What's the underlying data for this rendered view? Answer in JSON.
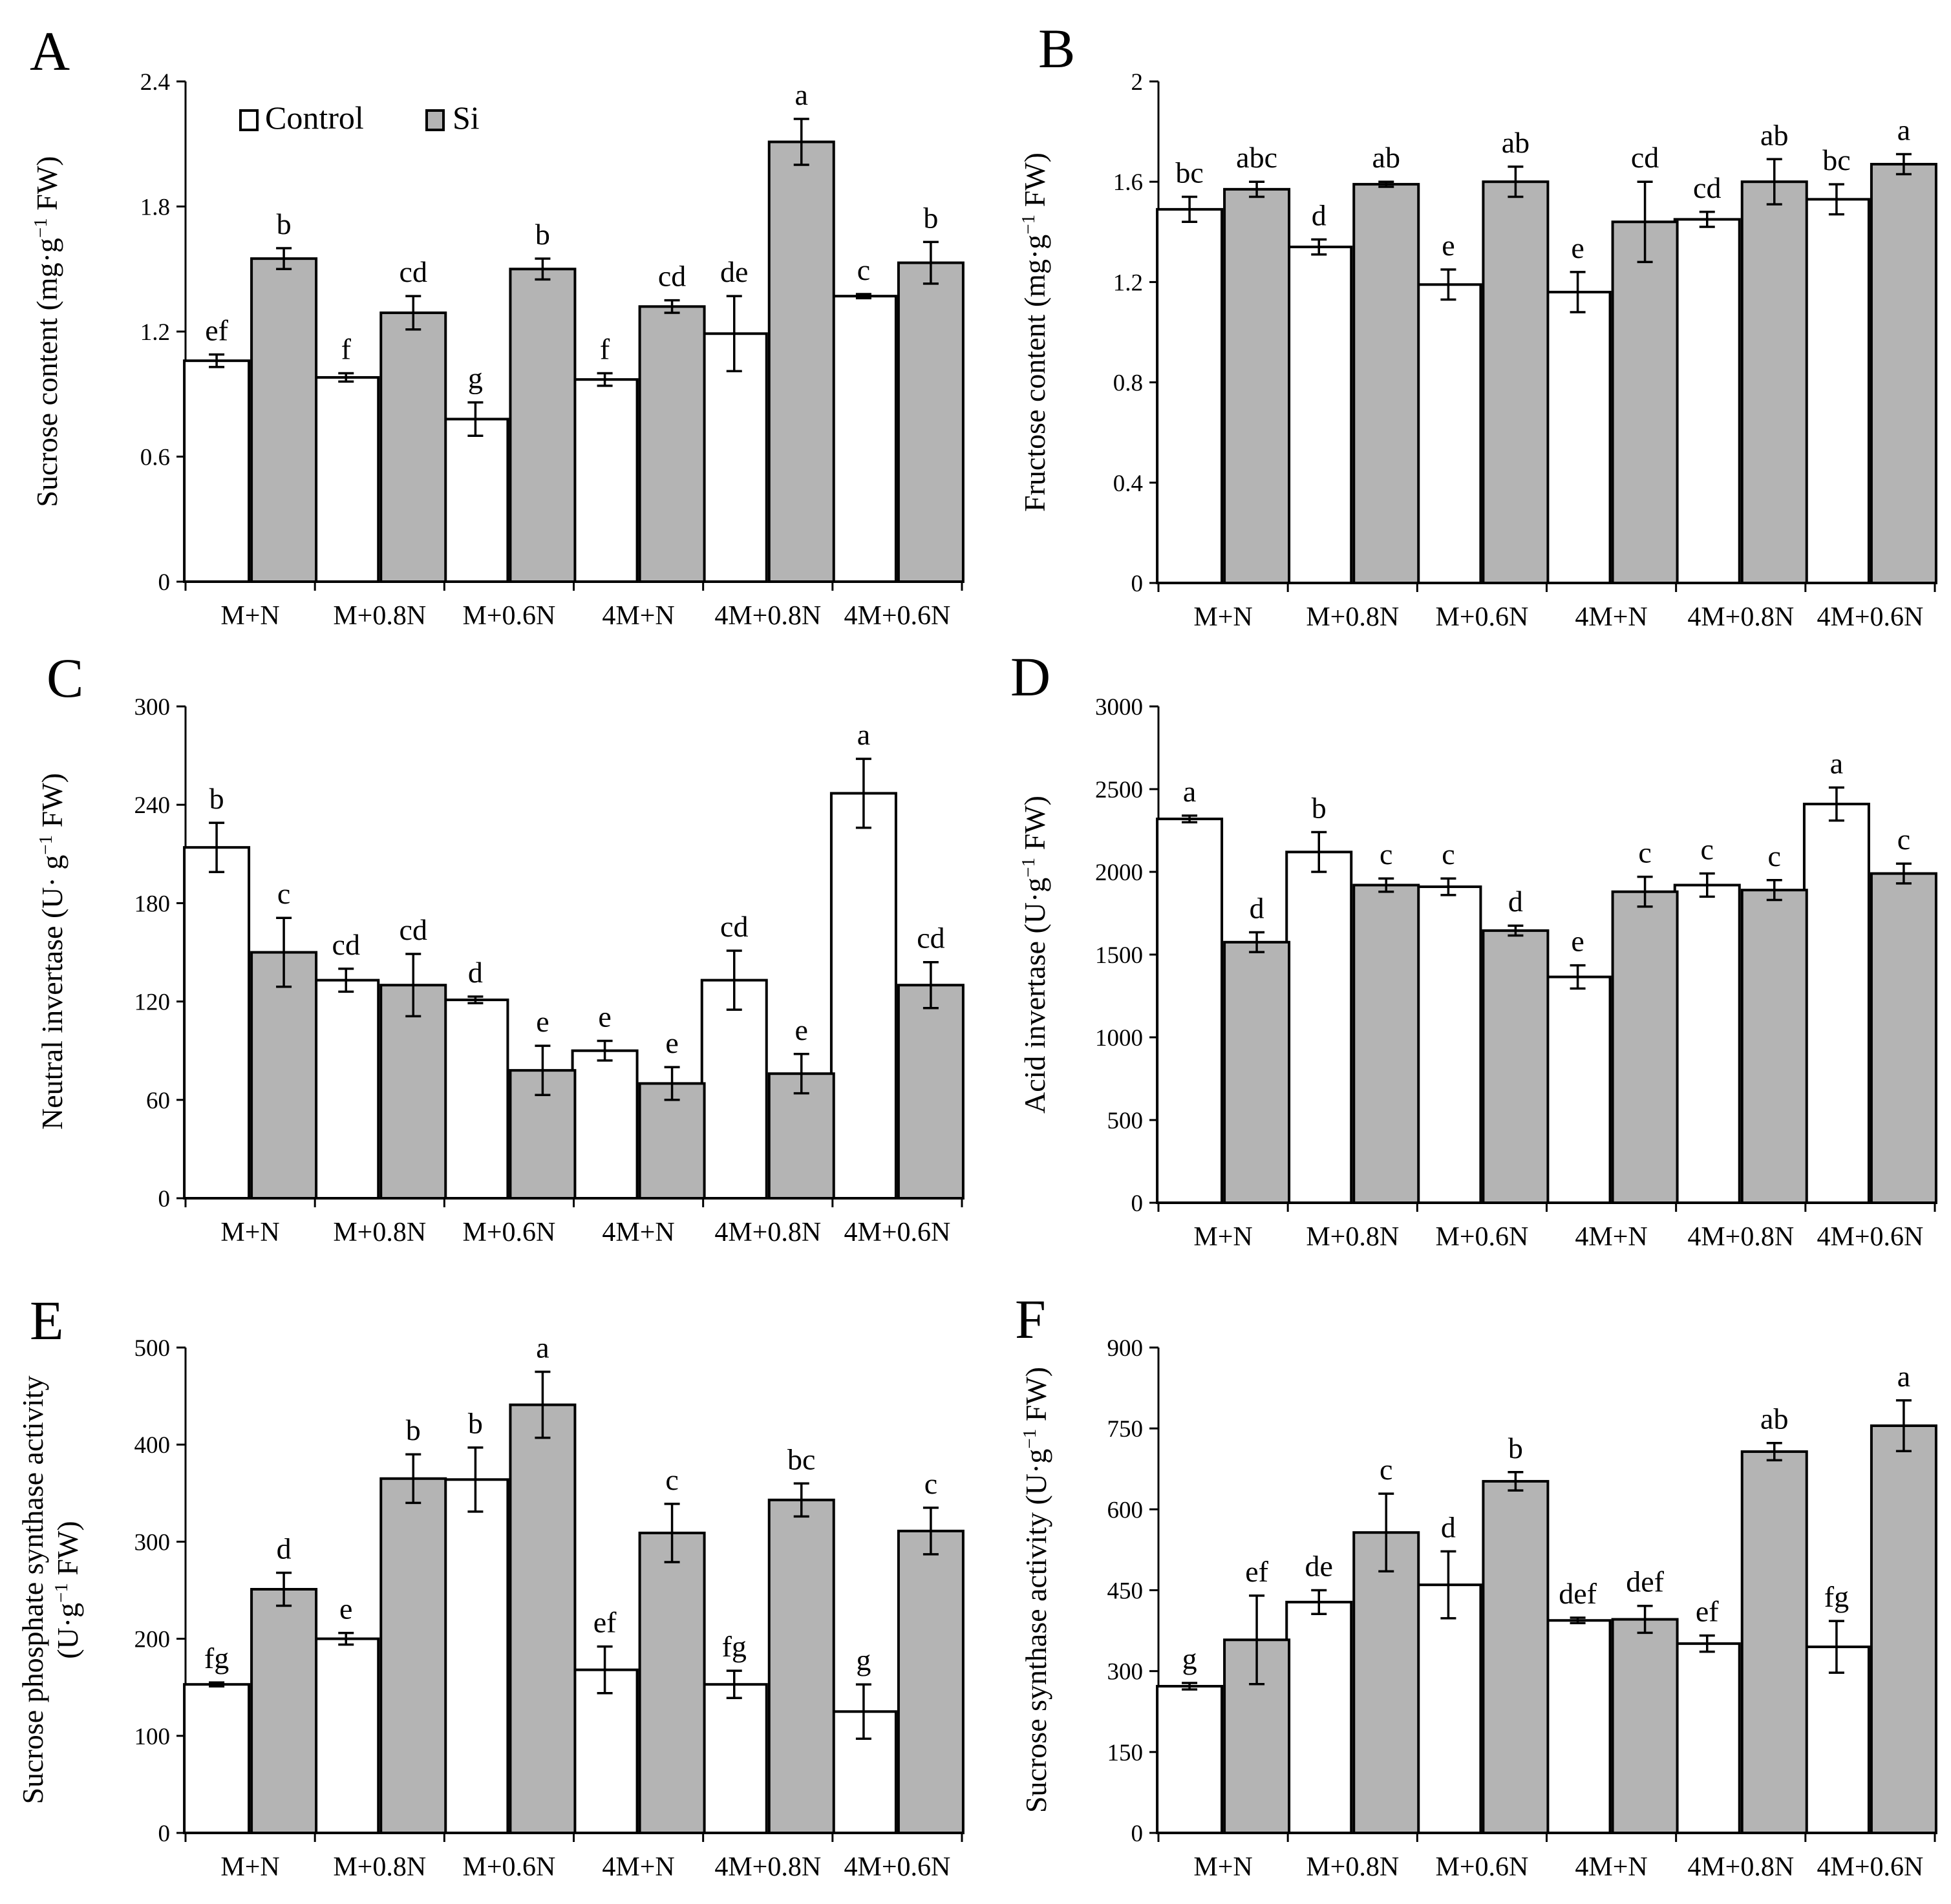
{
  "legend": {
    "control_label": "Control",
    "si_label": "Si"
  },
  "colors": {
    "control_fill": "#ffffff",
    "si_fill": "#b4b4b4",
    "stroke": "#000000"
  },
  "chart_data": [
    {
      "id": "A",
      "type": "bar",
      "panel_letter": "A",
      "ylabel_parts": [
        "Sucrose content (mg·g",
        "−1",
        " FW)"
      ],
      "categories": [
        "M+N",
        "M+0.8N",
        "M+0.6N",
        "4M+N",
        "4M+0.8N",
        "4M+0.6N"
      ],
      "ylim": [
        0,
        2.4
      ],
      "yticks": [
        0,
        0.6,
        1.2,
        1.8,
        2.4
      ],
      "ytick_labels": [
        "0",
        "0.6",
        "1.2",
        "1.8",
        "2.4"
      ],
      "series": [
        {
          "name": "Control",
          "values": [
            1.06,
            0.98,
            0.78,
            0.97,
            1.19,
            1.37
          ],
          "errors": [
            0.03,
            0.02,
            0.08,
            0.03,
            0.18,
            0.01
          ],
          "letters": [
            "ef",
            "f",
            "g",
            "f",
            "de",
            "c"
          ]
        },
        {
          "name": "Si",
          "values": [
            1.55,
            1.29,
            1.5,
            1.32,
            2.11,
            1.53
          ],
          "errors": [
            0.05,
            0.08,
            0.05,
            0.03,
            0.11,
            0.1
          ],
          "letters": [
            "b",
            "cd",
            "b",
            "cd",
            "a",
            "b"
          ]
        }
      ]
    },
    {
      "id": "B",
      "type": "bar",
      "panel_letter": "B",
      "ylabel_parts": [
        "Fructose content (mg·g",
        "−1",
        " FW)"
      ],
      "categories": [
        "M+N",
        "M+0.8N",
        "M+0.6N",
        "4M+N",
        "4M+0.8N",
        "4M+0.6N"
      ],
      "ylim": [
        0,
        2
      ],
      "yticks": [
        0,
        0.4,
        0.8,
        1.2,
        1.6,
        2
      ],
      "ytick_labels": [
        "0",
        "0.4",
        "0.8",
        "1.2",
        "1.6",
        "2"
      ],
      "series": [
        {
          "name": "Control",
          "values": [
            1.49,
            1.34,
            1.19,
            1.16,
            1.45,
            1.53
          ],
          "errors": [
            0.05,
            0.03,
            0.06,
            0.08,
            0.03,
            0.06
          ],
          "letters": [
            "bc",
            "d",
            "e",
            "e",
            "cd",
            "bc"
          ]
        },
        {
          "name": "Si",
          "values": [
            1.57,
            1.59,
            1.6,
            1.44,
            1.6,
            1.67
          ],
          "errors": [
            0.03,
            0.01,
            0.06,
            0.16,
            0.09,
            0.04
          ],
          "letters": [
            "abc",
            "ab",
            "ab",
            "cd",
            "ab",
            "a"
          ]
        }
      ]
    },
    {
      "id": "C",
      "type": "bar",
      "panel_letter": "C",
      "ylabel_parts": [
        "Neutral invertase (U· g",
        "−1",
        " FW)"
      ],
      "categories": [
        "M+N",
        "M+0.8N",
        "M+0.6N",
        "4M+N",
        "4M+0.8N",
        "4M+0.6N"
      ],
      "ylim": [
        0,
        300
      ],
      "yticks": [
        0,
        60,
        120,
        180,
        240,
        300
      ],
      "ytick_labels": [
        "0",
        "60",
        "120",
        "180",
        "240",
        "300"
      ],
      "series": [
        {
          "name": "Control",
          "values": [
            214,
            133,
            121,
            90,
            133,
            247
          ],
          "errors": [
            15,
            7,
            2,
            6,
            18,
            21
          ],
          "letters": [
            "b",
            "cd",
            "d",
            "e",
            "cd",
            "a"
          ]
        },
        {
          "name": "Si",
          "values": [
            150,
            130,
            78,
            70,
            76,
            130
          ],
          "errors": [
            21,
            19,
            15,
            10,
            12,
            14
          ],
          "letters": [
            "c",
            "cd",
            "e",
            "e",
            "e",
            "cd"
          ]
        }
      ]
    },
    {
      "id": "D",
      "type": "bar",
      "panel_letter": "D",
      "ylabel_parts": [
        "Acid invertase (U·g",
        "−1",
        " FW)"
      ],
      "categories": [
        "M+N",
        "M+0.8N",
        "M+0.6N",
        "4M+N",
        "4M+0.8N",
        "4M+0.6N"
      ],
      "ylim": [
        0,
        3000
      ],
      "yticks": [
        0,
        500,
        1000,
        1500,
        2000,
        2500,
        3000
      ],
      "ytick_labels": [
        "0",
        "500",
        "1000",
        "1500",
        "2000",
        "2500",
        "3000"
      ],
      "series": [
        {
          "name": "Control",
          "values": [
            2320,
            2120,
            1910,
            1365,
            1920,
            2410
          ],
          "errors": [
            20,
            120,
            50,
            70,
            70,
            100
          ],
          "letters": [
            "a",
            "b",
            "c",
            "e",
            "c",
            "a"
          ]
        },
        {
          "name": "Si",
          "values": [
            1575,
            1920,
            1645,
            1880,
            1890,
            1990
          ],
          "errors": [
            60,
            40,
            30,
            90,
            60,
            60
          ],
          "letters": [
            "d",
            "c",
            "d",
            "c",
            "c",
            "c"
          ]
        }
      ]
    },
    {
      "id": "E",
      "type": "bar",
      "panel_letter": "E",
      "ylabel_lines": [
        "Sucrose phosphate synthase activity"
      ],
      "ylabel_parts": [
        "(U·g",
        "−1",
        " FW)"
      ],
      "categories": [
        "M+N",
        "M+0.8N",
        "M+0.6N",
        "4M+N",
        "4M+0.8N",
        "4M+0.6N"
      ],
      "ylim": [
        0,
        500
      ],
      "yticks": [
        0,
        100,
        200,
        300,
        400,
        500
      ],
      "ytick_labels": [
        "0",
        "100",
        "200",
        "300",
        "400",
        "500"
      ],
      "series": [
        {
          "name": "Control",
          "values": [
            153,
            200,
            364,
            168,
            153,
            125
          ],
          "errors": [
            2,
            6,
            33,
            24,
            14,
            28
          ],
          "letters": [
            "fg",
            "e",
            "b",
            "ef",
            "fg",
            "g"
          ]
        },
        {
          "name": "Si",
          "values": [
            251,
            365,
            441,
            309,
            343,
            311
          ],
          "errors": [
            17,
            25,
            34,
            30,
            17,
            24
          ],
          "letters": [
            "d",
            "b",
            "a",
            "c",
            "bc",
            "c"
          ]
        }
      ]
    },
    {
      "id": "F",
      "type": "bar",
      "panel_letter": "F",
      "ylabel_parts": [
        "Sucrose synthase activity (U·g",
        "−1",
        " FW)"
      ],
      "categories": [
        "M+N",
        "M+0.8N",
        "M+0.6N",
        "4M+N",
        "4M+0.8N",
        "4M+0.6N"
      ],
      "ylim": [
        0,
        900
      ],
      "yticks": [
        0,
        150,
        300,
        450,
        600,
        750,
        900
      ],
      "ytick_labels": [
        "0",
        "150",
        "300",
        "450",
        "600",
        "750",
        "900"
      ],
      "series": [
        {
          "name": "Control",
          "values": [
            272,
            428,
            460,
            394,
            351,
            345
          ],
          "errors": [
            6,
            22,
            62,
            5,
            15,
            48
          ],
          "letters": [
            "g",
            "de",
            "d",
            "def",
            "ef",
            "fg"
          ]
        },
        {
          "name": "Si",
          "values": [
            358,
            557,
            652,
            396,
            707,
            755
          ],
          "errors": [
            82,
            72,
            17,
            25,
            16,
            47
          ],
          "letters": [
            "ef",
            "c",
            "b",
            "def",
            "ab",
            "a"
          ]
        }
      ]
    }
  ]
}
